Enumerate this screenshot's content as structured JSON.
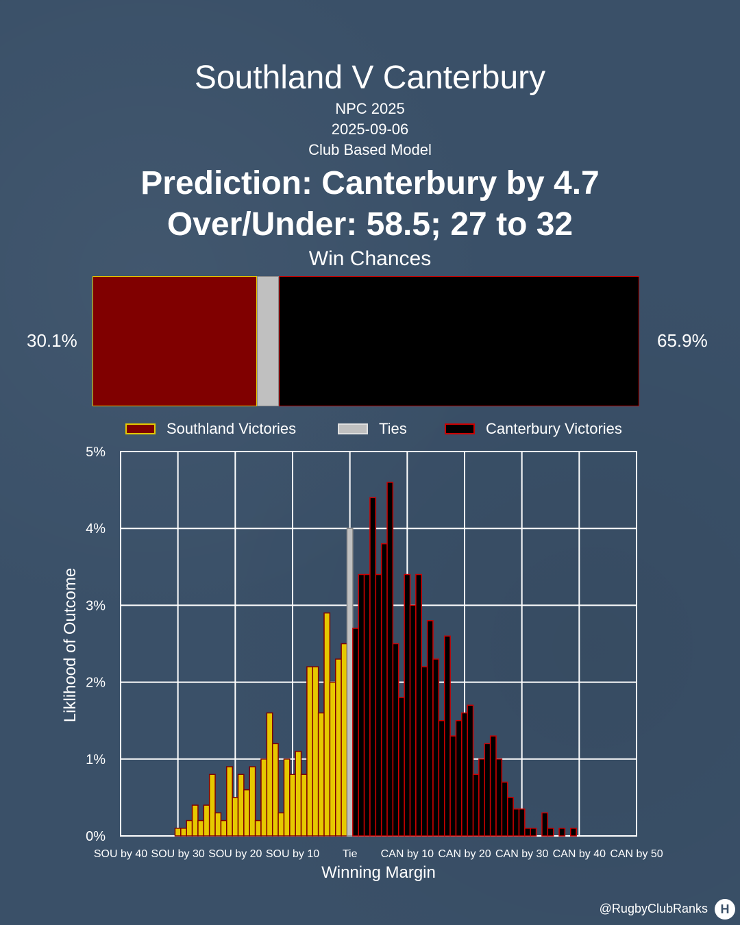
{
  "title": "Southland V Canterbury",
  "competition": "NPC 2025",
  "date": "2025-09-06",
  "model": "Club Based Model",
  "prediction": "Prediction: Canterbury by 4.7",
  "over_under": "Over/Under: 58.5; 27 to 32",
  "win_chances": {
    "title": "Win Chances",
    "home_pct_label": "30.1%",
    "away_pct_label": "65.9%",
    "home": 30.1,
    "tie": 4.0,
    "away": 65.9
  },
  "legend": {
    "home": "Southland Victories",
    "tie": "Ties",
    "away": "Canterbury Victories"
  },
  "colors": {
    "home_fill": "#800000",
    "home_edge": "#e6c800",
    "home_bar": "#e6c800",
    "tie_fill": "#c0c0c0",
    "away_fill": "#000000",
    "away_edge": "#cc0000",
    "background": "#3a5068"
  },
  "credit": "@RugbyClubRanks",
  "chart_data": {
    "type": "bar",
    "xlabel": "Winning Margin",
    "ylabel": "Liklihood of Outcome",
    "xlim": [
      -40,
      50
    ],
    "ylim": [
      0,
      5
    ],
    "grid": true,
    "x_ticks": [
      {
        "x": -40,
        "label": "SOU by 40"
      },
      {
        "x": -30,
        "label": "SOU by 30"
      },
      {
        "x": -20,
        "label": "SOU by 20"
      },
      {
        "x": -10,
        "label": "SOU by 10"
      },
      {
        "x": 0,
        "label": "Tie"
      },
      {
        "x": 10,
        "label": "CAN by 10"
      },
      {
        "x": 20,
        "label": "CAN by 20"
      },
      {
        "x": 30,
        "label": "CAN by 30"
      },
      {
        "x": 40,
        "label": "CAN by 40"
      },
      {
        "x": 50,
        "label": "CAN by 50"
      }
    ],
    "y_ticks": [
      {
        "y": 0,
        "label": "0%"
      },
      {
        "y": 1,
        "label": "1%"
      },
      {
        "y": 2,
        "label": "2%"
      },
      {
        "y": 3,
        "label": "3%"
      },
      {
        "y": 4,
        "label": "4%"
      },
      {
        "y": 5,
        "label": "5%"
      }
    ],
    "series": [
      {
        "name": "Southland Victories",
        "x": [
          -30,
          -29,
          -28,
          -27,
          -26,
          -25,
          -24,
          -23,
          -22,
          -21,
          -20,
          -19,
          -18,
          -17,
          -16,
          -15,
          -14,
          -13,
          -12,
          -11,
          -10,
          -9,
          -8,
          -7,
          -6,
          -5,
          -4,
          -3,
          -2,
          -1
        ],
        "values": [
          0.1,
          0.1,
          0.2,
          0.4,
          0.2,
          0.4,
          0.8,
          0.3,
          0.2,
          0.9,
          0.5,
          0.8,
          0.6,
          0.9,
          0.2,
          1.0,
          1.6,
          1.2,
          0.3,
          1.0,
          0.8,
          1.1,
          0.8,
          2.2,
          2.2,
          1.6,
          2.9,
          2.0,
          2.3,
          2.5
        ]
      },
      {
        "name": "Ties",
        "x": [
          0
        ],
        "values": [
          4.0
        ]
      },
      {
        "name": "Canterbury Victories",
        "x": [
          1,
          2,
          3,
          4,
          5,
          6,
          7,
          8,
          9,
          10,
          11,
          12,
          13,
          14,
          15,
          16,
          17,
          18,
          19,
          20,
          21,
          22,
          23,
          24,
          25,
          26,
          27,
          28,
          29,
          30,
          31,
          32,
          33,
          34,
          35,
          36,
          37,
          38,
          39
        ],
        "values": [
          2.7,
          3.4,
          3.4,
          4.4,
          3.4,
          3.8,
          4.6,
          2.5,
          1.8,
          3.4,
          3.0,
          3.4,
          2.2,
          2.8,
          2.3,
          1.5,
          2.6,
          1.3,
          1.5,
          1.6,
          1.7,
          0.8,
          1.0,
          1.2,
          1.3,
          1.0,
          0.7,
          0.5,
          0.35,
          0.35,
          0.1,
          0.1,
          0,
          0.3,
          0.1,
          0,
          0.1,
          0,
          0.1
        ]
      }
    ]
  }
}
